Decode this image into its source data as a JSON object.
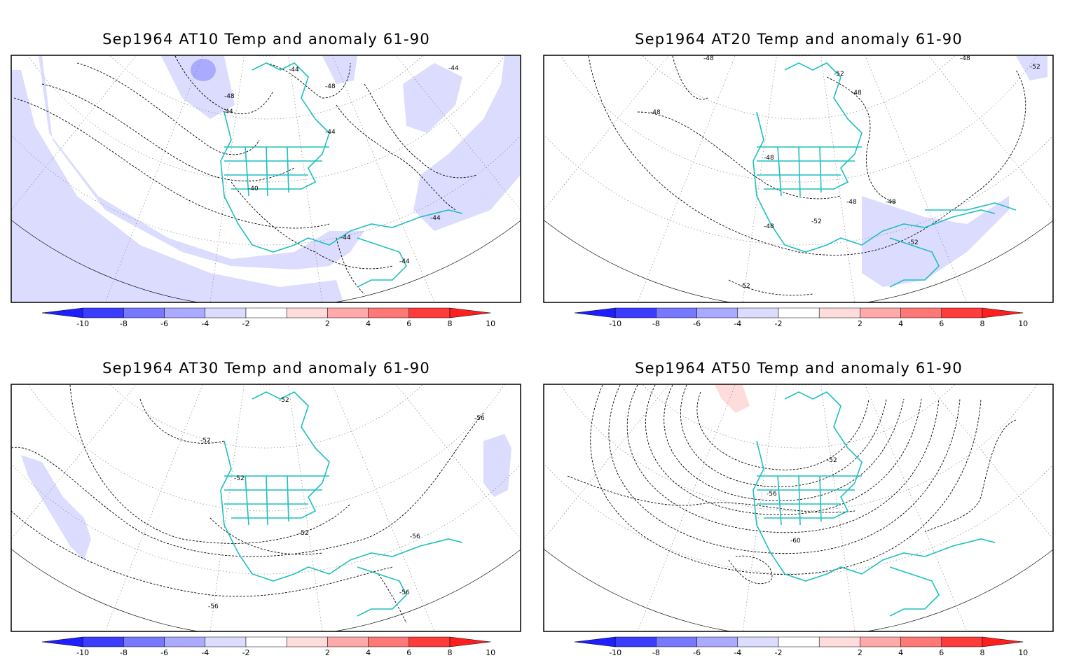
{
  "panels": [
    {
      "title": "Sep1964 AT10 Temp and anomaly 61-90",
      "contour_labels": [
        "-48",
        "-44",
        "-44",
        "-48",
        "-44",
        "-44",
        "-40",
        "-44",
        "-44",
        "-44"
      ]
    },
    {
      "title": "Sep1964 AT20 Temp and anomaly 61-90",
      "contour_labels": [
        "-48",
        "-52",
        "-48",
        "-48",
        "-48",
        "-52",
        "-48",
        "-48",
        "-48",
        "-48",
        "-52",
        "-52",
        "-52"
      ]
    },
    {
      "title": "Sep1964 AT30 Temp and anomaly 61-90",
      "contour_labels": [
        "-52",
        "-52",
        "-52",
        "-52",
        "-56",
        "-56",
        "-56",
        "-56"
      ]
    },
    {
      "title": "Sep1964 AT50 Temp and anomaly 61-90",
      "contour_labels": [
        "-52",
        "-56",
        "-60"
      ]
    }
  ],
  "colorbar": {
    "tick_labels": [
      "-10",
      "-8",
      "-6",
      "-4",
      "-2",
      "2",
      "4",
      "6",
      "8",
      "10"
    ],
    "colors": [
      "#1e1eff",
      "#3c3cff",
      "#7878ff",
      "#aaaaff",
      "#dcdcff",
      "#ffffff",
      "#ffdcdc",
      "#ffaaaa",
      "#ff7878",
      "#ff3c3c",
      "#ff1e1e"
    ]
  },
  "colors": {
    "coastline": "#1fbfbf",
    "anomaly_negative": "#dcdcff",
    "anomaly_negative_strong": "#aaaaff",
    "anomaly_positive": "#ffdcdc",
    "frame": "#000000",
    "graticule": "#888888"
  }
}
